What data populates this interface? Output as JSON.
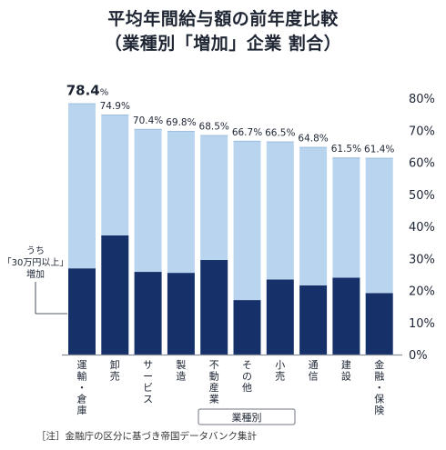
{
  "title": [
    "平均年間給与額の前年度比較",
    "（業種別「増加」企業 割合）"
  ],
  "footnote": "［注］金融庁の区分に基づき帝国データバンク集計",
  "colors": {
    "light": "#b9d4ee",
    "dark": "#16306a",
    "axis": "#8a9099",
    "text": "#1c2433"
  },
  "chart_data": {
    "type": "bar",
    "stacked": true,
    "categories": [
      "運輸・倉庫",
      "卸売",
      "サービス",
      "製造",
      "不動産業",
      "その他",
      "小売",
      "通信",
      "建設",
      "金融・保険"
    ],
    "value_labels": [
      "78.4",
      "74.9",
      "70.4",
      "69.8",
      "68.5",
      "66.7",
      "66.5",
      "64.8",
      "61.5",
      "61.4"
    ],
    "first_label_unit": "%",
    "series": [
      {
        "values": [
          26.9,
          37.2,
          25.8,
          25.5,
          29.5,
          17.0,
          23.4,
          21.6,
          24.0,
          19.2
        ]
      },
      {
        "values": [
          51.5,
          37.7,
          44.6,
          44.3,
          39.0,
          49.7,
          43.1,
          43.2,
          37.5,
          42.2
        ]
      }
    ],
    "totals": [
      78.4,
      74.9,
      70.4,
      69.8,
      68.5,
      66.7,
      66.5,
      64.8,
      61.5,
      61.4
    ],
    "y_ticks": [
      "0%",
      "10%",
      "20%",
      "30%",
      "40%",
      "50%",
      "60%",
      "70%",
      "80%"
    ],
    "ylim": [
      0,
      80
    ],
    "y_axis_side": "right",
    "annotation": [
      "うち",
      "「30万円以上」",
      "増加"
    ],
    "x_axis_label": "業種別"
  }
}
